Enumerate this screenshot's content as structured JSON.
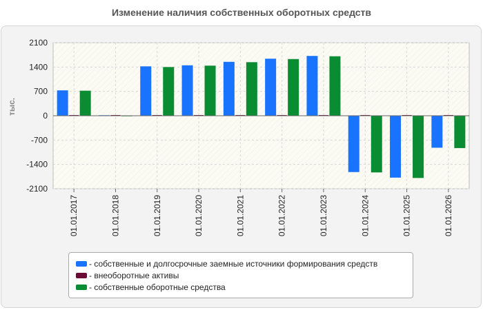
{
  "title": "Изменение наличия собственных оборотных средств",
  "chart_data": {
    "type": "bar",
    "ylabel": "тыс.",
    "ylim": [
      -2100,
      2100
    ],
    "yticks": [
      "2100",
      "1400",
      "700",
      "0",
      "-700",
      "-1400",
      "-2100"
    ],
    "ytick_values": [
      2100,
      1400,
      700,
      0,
      -700,
      -1400,
      -2100
    ],
    "categories": [
      "01.01.2017",
      "01.01.2018",
      "01.01.2019",
      "01.01.2020",
      "01.01.2021",
      "01.01.2022",
      "01.01.2023",
      "01.01.2024",
      "01.01.2025",
      "01.01.2026"
    ],
    "series": [
      {
        "name": "- собственные и долгосрочные заемные источники формирования средств",
        "color": "#1a73ff",
        "values": [
          730,
          15,
          1420,
          1450,
          1550,
          1640,
          1720,
          -1620,
          -1780,
          -920
        ]
      },
      {
        "name": "- внеоборотные активы",
        "color": "#6b0a37",
        "values": [
          20,
          20,
          20,
          20,
          20,
          20,
          20,
          20,
          20,
          20
        ]
      },
      {
        "name": "- собственные оборотные средства",
        "color": "#0a8c32",
        "values": [
          720,
          5,
          1400,
          1440,
          1540,
          1630,
          1710,
          -1630,
          -1790,
          -930
        ]
      }
    ],
    "grid": true,
    "legend_position": "bottom"
  }
}
